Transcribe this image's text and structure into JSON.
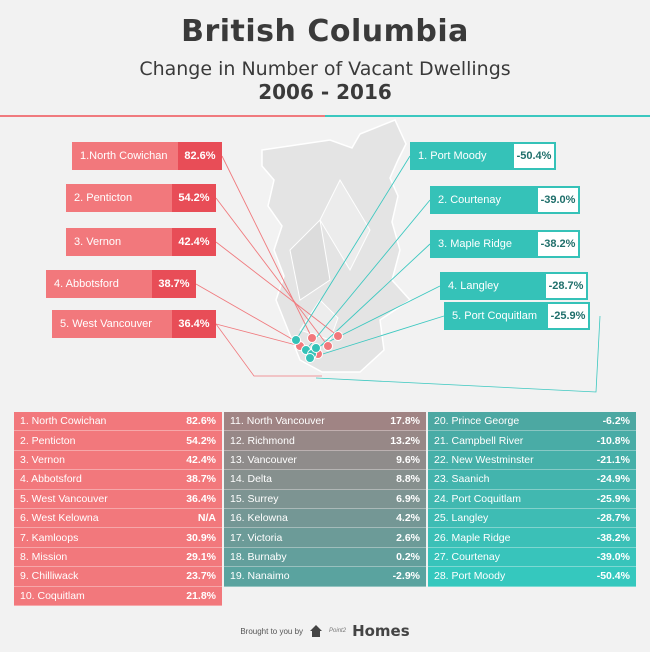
{
  "header": {
    "title": "British Columbia",
    "subtitle": "Change in Number of Vacant Dwellings",
    "years": "2006 - 2016"
  },
  "chart_data": {
    "type": "table",
    "title": "British Columbia",
    "subtitle": "Change in Number of Vacant Dwellings",
    "period": "2006 - 2016",
    "unit": "%",
    "rows": [
      {
        "rank": "1.",
        "city": "North Cowichan",
        "value": 82.6,
        "display": "82.6%"
      },
      {
        "rank": "2.",
        "city": "Penticton",
        "value": 54.2,
        "display": "54.2%"
      },
      {
        "rank": "3.",
        "city": "Vernon",
        "value": 42.4,
        "display": "42.4%"
      },
      {
        "rank": "4.",
        "city": "Abbotsford",
        "value": 38.7,
        "display": "38.7%"
      },
      {
        "rank": "5.",
        "city": "West Vancouver",
        "value": 36.4,
        "display": "36.4%"
      },
      {
        "rank": "6.",
        "city": "West Kelowna",
        "value": null,
        "display": "N/A"
      },
      {
        "rank": "7.",
        "city": "Kamloops",
        "value": 30.9,
        "display": "30.9%"
      },
      {
        "rank": "8.",
        "city": "Mission",
        "value": 29.1,
        "display": "29.1%"
      },
      {
        "rank": "9.",
        "city": "Chilliwack",
        "value": 23.7,
        "display": "23.7%"
      },
      {
        "rank": "10.",
        "city": "Coquitlam",
        "value": 21.8,
        "display": "21.8%"
      },
      {
        "rank": "11.",
        "city": "North Vancouver",
        "value": 17.8,
        "display": "17.8%"
      },
      {
        "rank": "12.",
        "city": "Richmond",
        "value": 13.2,
        "display": "13.2%"
      },
      {
        "rank": "13.",
        "city": "Vancouver",
        "value": 9.6,
        "display": "9.6%"
      },
      {
        "rank": "14.",
        "city": "Delta",
        "value": 8.8,
        "display": "8.8%"
      },
      {
        "rank": "15.",
        "city": "Surrey",
        "value": 6.9,
        "display": "6.9%"
      },
      {
        "rank": "16.",
        "city": "Kelowna",
        "value": 4.2,
        "display": "4.2%"
      },
      {
        "rank": "17.",
        "city": "Victoria",
        "value": 2.6,
        "display": "2.6%"
      },
      {
        "rank": "18.",
        "city": "Burnaby",
        "value": 0.2,
        "display": "0.2%"
      },
      {
        "rank": "19.",
        "city": "Nanaimo",
        "value": -2.9,
        "display": "-2.9%"
      },
      {
        "rank": "20.",
        "city": "Prince George",
        "value": -6.2,
        "display": "-6.2%"
      },
      {
        "rank": "21.",
        "city": "Campbell River",
        "value": -10.8,
        "display": "-10.8%"
      },
      {
        "rank": "22.",
        "city": "New Westminster",
        "value": -21.1,
        "display": "-21.1%"
      },
      {
        "rank": "23.",
        "city": "Saanich",
        "value": -24.9,
        "display": "-24.9%"
      },
      {
        "rank": "24.",
        "city": "Port Coquitlam",
        "value": -25.9,
        "display": "-25.9%"
      },
      {
        "rank": "25.",
        "city": "Langley",
        "value": -28.7,
        "display": "-28.7%"
      },
      {
        "rank": "26.",
        "city": "Maple Ridge",
        "value": -38.2,
        "display": "-38.2%"
      },
      {
        "rank": "27.",
        "city": "Courtenay",
        "value": -39.0,
        "display": "-39.0%"
      },
      {
        "rank": "28.",
        "city": "Port Moody",
        "value": -50.4,
        "display": "-50.4%"
      }
    ],
    "top_increases": [
      {
        "label": "1.North Cowichan",
        "display": "82.6%"
      },
      {
        "label": "2. Penticton",
        "display": "54.2%"
      },
      {
        "label": "3. Vernon",
        "display": "42.4%"
      },
      {
        "label": "4. Abbotsford",
        "display": "38.7%"
      },
      {
        "label": "5. West Vancouver",
        "display": "36.4%"
      }
    ],
    "top_decreases": [
      {
        "label": "1. Port Moody",
        "display": "-50.4%"
      },
      {
        "label": "2. Courtenay",
        "display": "-39.0%"
      },
      {
        "label": "3. Maple Ridge",
        "display": "-38.2%"
      },
      {
        "label": "4. Langley",
        "display": "-28.7%"
      },
      {
        "label": "5. Port Coquitlam",
        "display": "-25.9%"
      }
    ]
  },
  "colors": {
    "positive_strong": "#f2787c",
    "positive_dark": "#e84d57",
    "neutral_positive": "#a08484",
    "neutral_negative": "#5aa39f",
    "negative": "#35c2b8",
    "map": "#e6e6e6"
  },
  "footer": {
    "brought_by": "Brought to you by",
    "brand_small": "Point2",
    "brand": "Homes",
    "brand_icon": "house-icon"
  }
}
